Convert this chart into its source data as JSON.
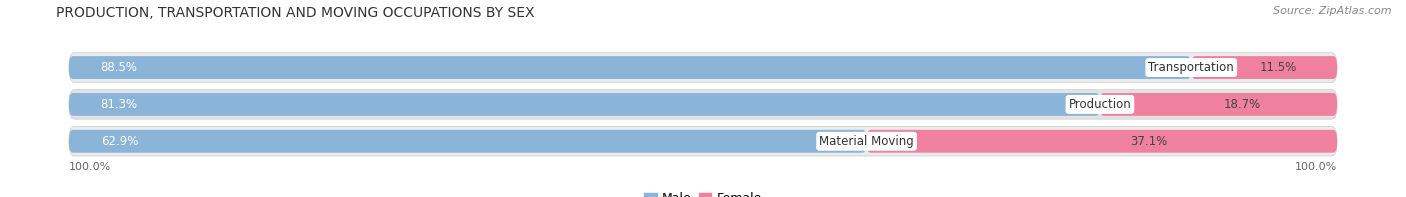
{
  "title": "PRODUCTION, TRANSPORTATION AND MOVING OCCUPATIONS BY SEX",
  "source": "Source: ZipAtlas.com",
  "categories": [
    "Transportation",
    "Production",
    "Material Moving"
  ],
  "male_values": [
    88.5,
    81.3,
    62.9
  ],
  "female_values": [
    11.5,
    18.7,
    37.1
  ],
  "male_color": "#8ab4d8",
  "female_color": "#f080a0",
  "male_light_color": "#b8d0e8",
  "female_light_color": "#f4b0c0",
  "row_bg_color_odd": "#ebebeb",
  "row_bg_color_even": "#e0e0e0",
  "title_fontsize": 10,
  "source_fontsize": 8,
  "bar_label_fontsize": 8.5,
  "category_fontsize": 8.5,
  "legend_fontsize": 9,
  "axis_label_fontsize": 8,
  "left_label": "100.0%",
  "right_label": "100.0%",
  "figsize": [
    14.06,
    1.97
  ],
  "dpi": 100
}
